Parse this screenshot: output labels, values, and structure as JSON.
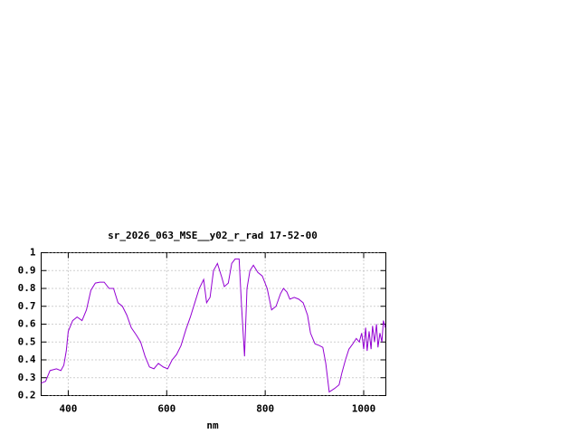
{
  "chart_data": {
    "type": "line",
    "title": "sr_2026_063_MSE__y02_r_rad 17-52-00",
    "xlabel": "nm",
    "x": [
      345,
      354,
      363,
      376,
      385,
      391,
      396,
      400,
      409,
      418,
      428,
      437,
      446,
      455,
      464,
      473,
      483,
      492,
      501,
      510,
      519,
      528,
      538,
      547,
      556,
      565,
      574,
      583,
      593,
      602,
      611,
      620,
      629,
      639,
      648,
      657,
      666,
      675,
      681,
      688,
      695,
      703,
      712,
      717,
      725,
      732,
      739,
      747,
      752,
      758,
      763,
      769,
      776,
      785,
      794,
      804,
      813,
      822,
      831,
      837,
      844,
      850,
      859,
      868,
      877,
      886,
      892,
      901,
      910,
      917,
      923,
      930,
      941,
      950,
      956,
      963,
      970,
      978,
      985,
      991,
      996,
      1000,
      1004,
      1007,
      1011,
      1015,
      1018,
      1022,
      1026,
      1029,
      1033,
      1037,
      1040,
      1044
    ],
    "series": [
      {
        "color": "#9400d3",
        "values": [
          0.27,
          0.28,
          0.34,
          0.35,
          0.34,
          0.37,
          0.45,
          0.56,
          0.62,
          0.64,
          0.62,
          0.68,
          0.79,
          0.83,
          0.835,
          0.835,
          0.8,
          0.8,
          0.72,
          0.7,
          0.65,
          0.58,
          0.54,
          0.5,
          0.42,
          0.36,
          0.35,
          0.38,
          0.36,
          0.35,
          0.4,
          0.43,
          0.48,
          0.57,
          0.64,
          0.72,
          0.8,
          0.85,
          0.72,
          0.75,
          0.9,
          0.94,
          0.86,
          0.81,
          0.83,
          0.94,
          0.965,
          0.965,
          0.7,
          0.42,
          0.8,
          0.9,
          0.93,
          0.89,
          0.87,
          0.8,
          0.68,
          0.7,
          0.77,
          0.8,
          0.78,
          0.74,
          0.75,
          0.74,
          0.72,
          0.65,
          0.55,
          0.49,
          0.48,
          0.47,
          0.38,
          0.22,
          0.24,
          0.26,
          0.33,
          0.4,
          0.46,
          0.49,
          0.52,
          0.5,
          0.55,
          0.46,
          0.58,
          0.45,
          0.56,
          0.46,
          0.59,
          0.5,
          0.6,
          0.47,
          0.55,
          0.5,
          0.62,
          0.58
        ]
      }
    ],
    "xlim": [
      345,
      1045
    ],
    "xticks": [
      400,
      600,
      800,
      1000
    ],
    "ylim": [
      0.2,
      1
    ],
    "yticks": [
      0.2,
      0.3,
      0.4,
      0.5,
      0.6,
      0.7,
      0.8,
      0.9,
      1
    ],
    "grid": true
  }
}
